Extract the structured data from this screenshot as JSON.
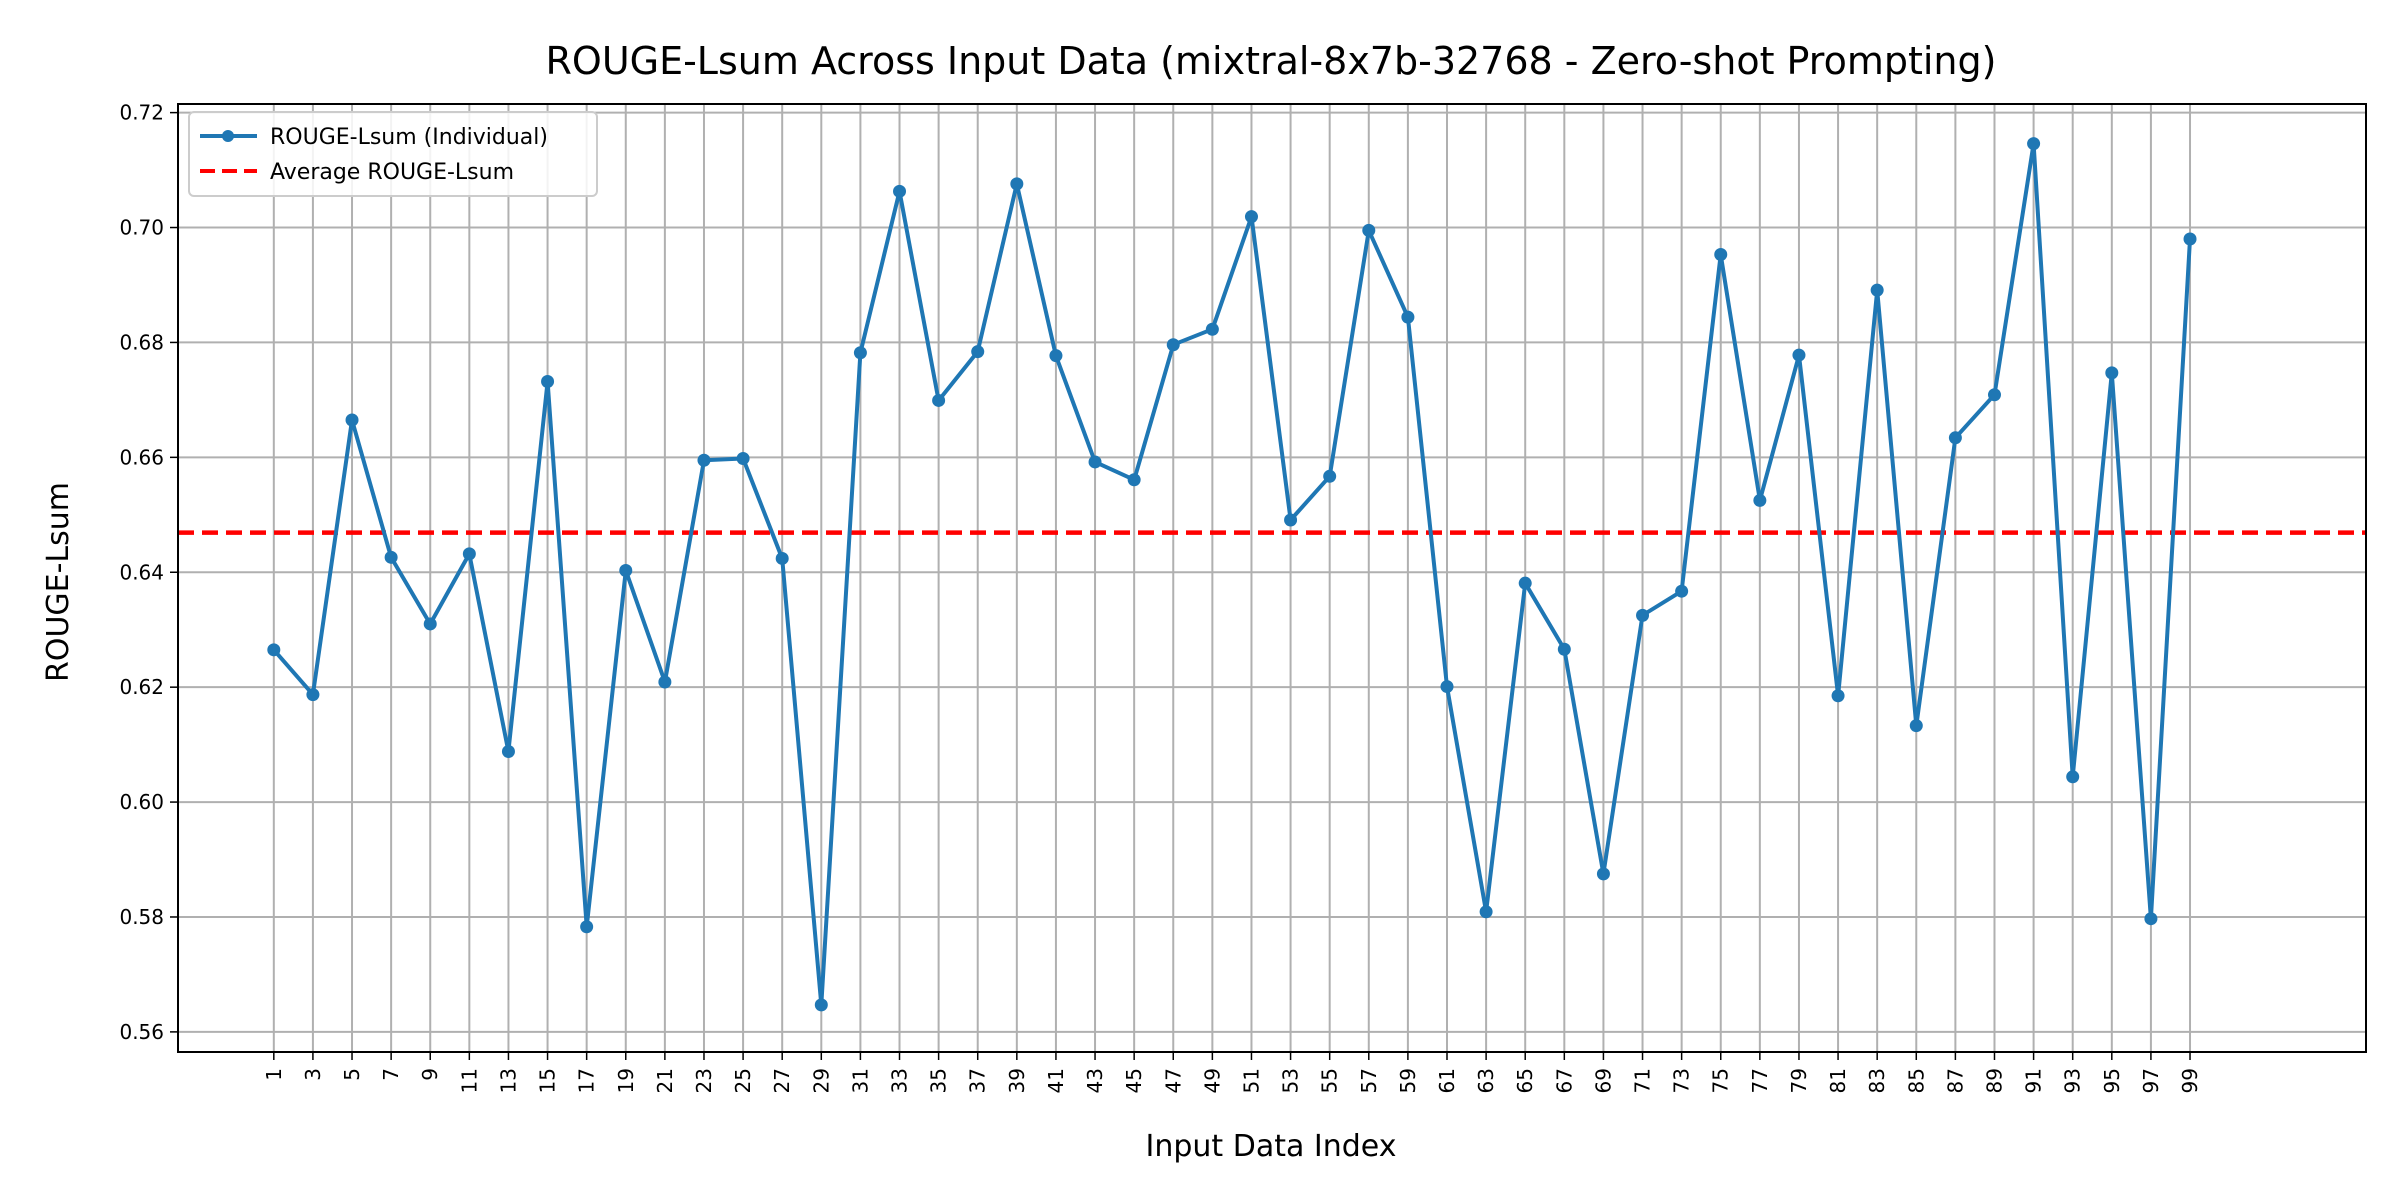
{
  "chart_data": {
    "type": "line",
    "title": "ROUGE-Lsum Across Input Data (mixtral-8x7b-32768 - Zero-shot Prompting)",
    "xlabel": "Input Data Index",
    "ylabel": "ROUGE-Lsum",
    "xlim": [
      -3.9,
      108
    ],
    "ylim": [
      0.5565,
      0.7215
    ],
    "yticks": [
      0.56,
      0.58,
      0.6,
      0.62,
      0.64,
      0.66,
      0.68,
      0.7,
      0.72
    ],
    "ytick_labels": [
      "0.56",
      "0.58",
      "0.60",
      "0.62",
      "0.64",
      "0.66",
      "0.68",
      "0.70",
      "0.72"
    ],
    "xticks": [
      1,
      3,
      5,
      7,
      9,
      11,
      13,
      15,
      17,
      19,
      21,
      23,
      25,
      27,
      29,
      31,
      33,
      35,
      37,
      39,
      41,
      43,
      45,
      47,
      49,
      51,
      53,
      55,
      57,
      59,
      61,
      63,
      65,
      67,
      69,
      71,
      73,
      75,
      77,
      79,
      81,
      83,
      85,
      87,
      89,
      91,
      93,
      95,
      97,
      99
    ],
    "xtick_labels": [
      "1",
      "3",
      "5",
      "7",
      "9",
      "11",
      "13",
      "15",
      "17",
      "19",
      "21",
      "23",
      "25",
      "27",
      "29",
      "31",
      "33",
      "35",
      "37",
      "39",
      "41",
      "43",
      "45",
      "47",
      "49",
      "51",
      "53",
      "55",
      "57",
      "59",
      "61",
      "63",
      "65",
      "67",
      "69",
      "71",
      "73",
      "75",
      "77",
      "79",
      "81",
      "83",
      "85",
      "87",
      "89",
      "91",
      "93",
      "95",
      "97",
      "99"
    ],
    "grid": true,
    "legend_position": "top-left",
    "series": [
      {
        "name": "ROUGE-Lsum (Individual)",
        "color": "#1f77b4",
        "style": "line-with-markers",
        "x": [
          1,
          3,
          5,
          7,
          9,
          11,
          13,
          15,
          17,
          19,
          21,
          23,
          25,
          27,
          29,
          31,
          33,
          35,
          37,
          39,
          41,
          43,
          45,
          47,
          49,
          51,
          53,
          55,
          57,
          59,
          61,
          63,
          65,
          67,
          69,
          71,
          73,
          75,
          77,
          79,
          81,
          83,
          85,
          87,
          89,
          91,
          93,
          95,
          97,
          99
        ],
        "values": [
          0.6265,
          0.6187,
          0.6665,
          0.6426,
          0.631,
          0.6432,
          0.6088,
          0.6732,
          0.5783,
          0.6403,
          0.6209,
          0.6595,
          0.6598,
          0.6424,
          0.5647,
          0.6782,
          0.7063,
          0.6699,
          0.6784,
          0.7076,
          0.6777,
          0.6592,
          0.6561,
          0.6796,
          0.6823,
          0.7019,
          0.6491,
          0.6567,
          0.6995,
          0.6844,
          0.6201,
          0.5809,
          0.6381,
          0.6266,
          0.5875,
          0.6325,
          0.6367,
          0.6953,
          0.6525,
          0.6778,
          0.6185,
          0.6891,
          0.6133,
          0.6634,
          0.6709,
          0.7146,
          0.6044,
          0.6747,
          0.5797,
          0.698
        ]
      },
      {
        "name": "Average ROUGE-Lsum",
        "color": "#ff0000",
        "style": "dashed-horizontal",
        "value": 0.6469
      }
    ]
  }
}
